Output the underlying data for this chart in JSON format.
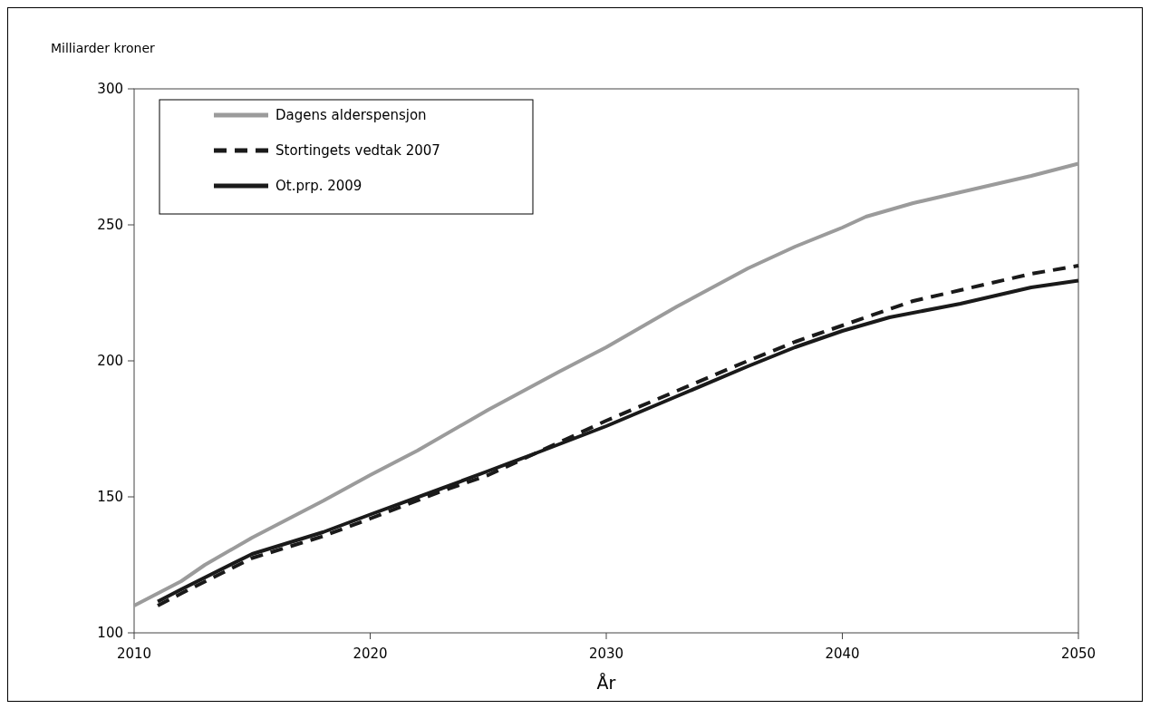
{
  "chart_data": {
    "type": "line",
    "ylabel": "Milliarder kroner",
    "xlabel": "År",
    "xlim": [
      2010,
      2050
    ],
    "xticks": [
      2010,
      2020,
      2030,
      2040,
      2050
    ],
    "ylim": [
      100,
      300
    ],
    "yticks": [
      100,
      150,
      200,
      250,
      300
    ],
    "legend": "top left",
    "grid": false,
    "series": [
      {
        "name": "Dagens alderspensjon",
        "color": "#9b9b9b",
        "line_style": "solid",
        "x": [
          2010,
          2012,
          2013,
          2015,
          2017,
          2018,
          2020,
          2022,
          2025,
          2028,
          2030,
          2033,
          2036,
          2038,
          2040,
          2041,
          2043,
          2045,
          2048,
          2050
        ],
        "values": [
          110,
          119,
          125,
          135,
          144,
          148.5,
          158,
          167,
          182,
          196,
          205,
          220,
          234,
          242,
          249,
          253,
          258,
          262,
          268,
          272.5
        ]
      },
      {
        "name": "Stortingets vedtak 2007",
        "color": "#1a1a1a",
        "line_style": "dashed",
        "x": [
          2011,
          2012,
          2015,
          2018,
          2020,
          2023,
          2025,
          2027,
          2030,
          2033,
          2036,
          2038,
          2040,
          2042,
          2043,
          2045,
          2048,
          2050
        ],
        "values": [
          110,
          114.5,
          127.5,
          135.5,
          142,
          152,
          158,
          166,
          178,
          189,
          200,
          207,
          213,
          219,
          222,
          226,
          232,
          235
        ]
      },
      {
        "name": "Ot.prp. 2009",
        "color": "#1a1a1a",
        "line_style": "solid",
        "x": [
          2011,
          2012,
          2015,
          2018,
          2020,
          2023,
          2025,
          2027,
          2030,
          2033,
          2036,
          2038,
          2040,
          2042,
          2045,
          2048,
          2050
        ],
        "values": [
          111.5,
          116,
          129,
          137,
          143.5,
          153,
          159.5,
          166,
          176,
          187,
          198,
          205,
          211,
          216,
          221,
          227,
          229.5
        ]
      }
    ]
  }
}
